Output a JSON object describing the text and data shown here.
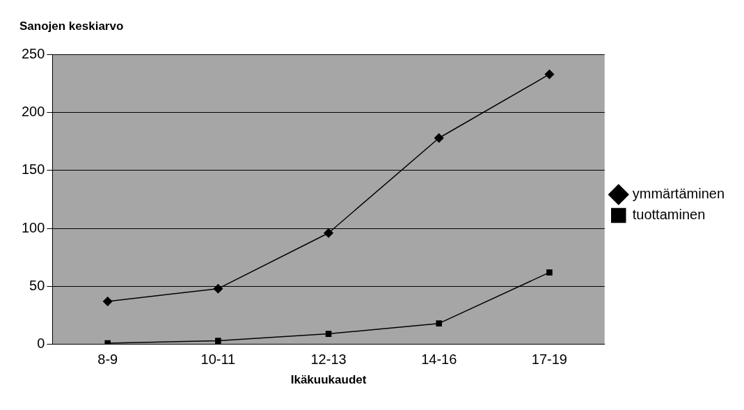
{
  "chart_data": {
    "type": "line",
    "ylabel": "Sanojen keskiarvo",
    "xlabel": "Ikäkuukaudet",
    "categories": [
      "8-9",
      "10-11",
      "12-13",
      "14-16",
      "17-19"
    ],
    "series": [
      {
        "name": "ymmärtäminen",
        "color": "#000000",
        "marker": "diamond",
        "values": [
          37,
          48,
          96,
          178,
          233
        ]
      },
      {
        "name": "tuottaminen",
        "color": "#000000",
        "marker": "square",
        "values": [
          1,
          3,
          9,
          18,
          62
        ]
      }
    ],
    "ylim": [
      0,
      250
    ],
    "yticks": [
      0,
      50,
      100,
      150,
      200,
      250
    ],
    "grid": "y",
    "legend": "right",
    "line_style": "solid"
  }
}
